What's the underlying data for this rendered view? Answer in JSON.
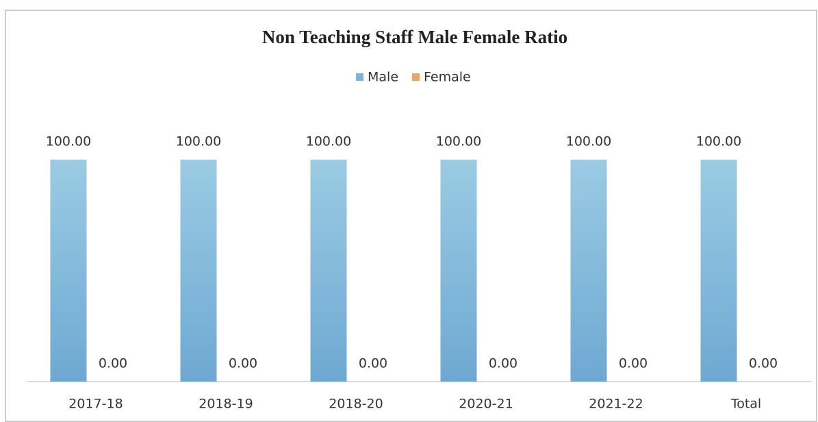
{
  "chart_data": {
    "type": "bar",
    "title": "Non Teaching Staff Male Female Ratio",
    "categories": [
      "2017-18",
      "2018-19",
      "2018-20",
      "2020-21",
      "2021-22",
      "Total"
    ],
    "series": [
      {
        "name": "Male",
        "color": "#7fb4d6",
        "values": [
          100,
          100,
          100,
          100,
          100,
          100
        ],
        "value_labels": [
          "100.00",
          "100.00",
          "100.00",
          "100.00",
          "100.00",
          "100.00"
        ]
      },
      {
        "name": "Female",
        "color": "#e9a66b",
        "values": [
          0,
          0,
          0,
          0,
          0,
          0
        ],
        "value_labels": [
          "0.00",
          "0.00",
          "0.00",
          "0.00",
          "0.00",
          "0.00"
        ]
      }
    ],
    "ylim": [
      0,
      100
    ],
    "legend": "top"
  }
}
